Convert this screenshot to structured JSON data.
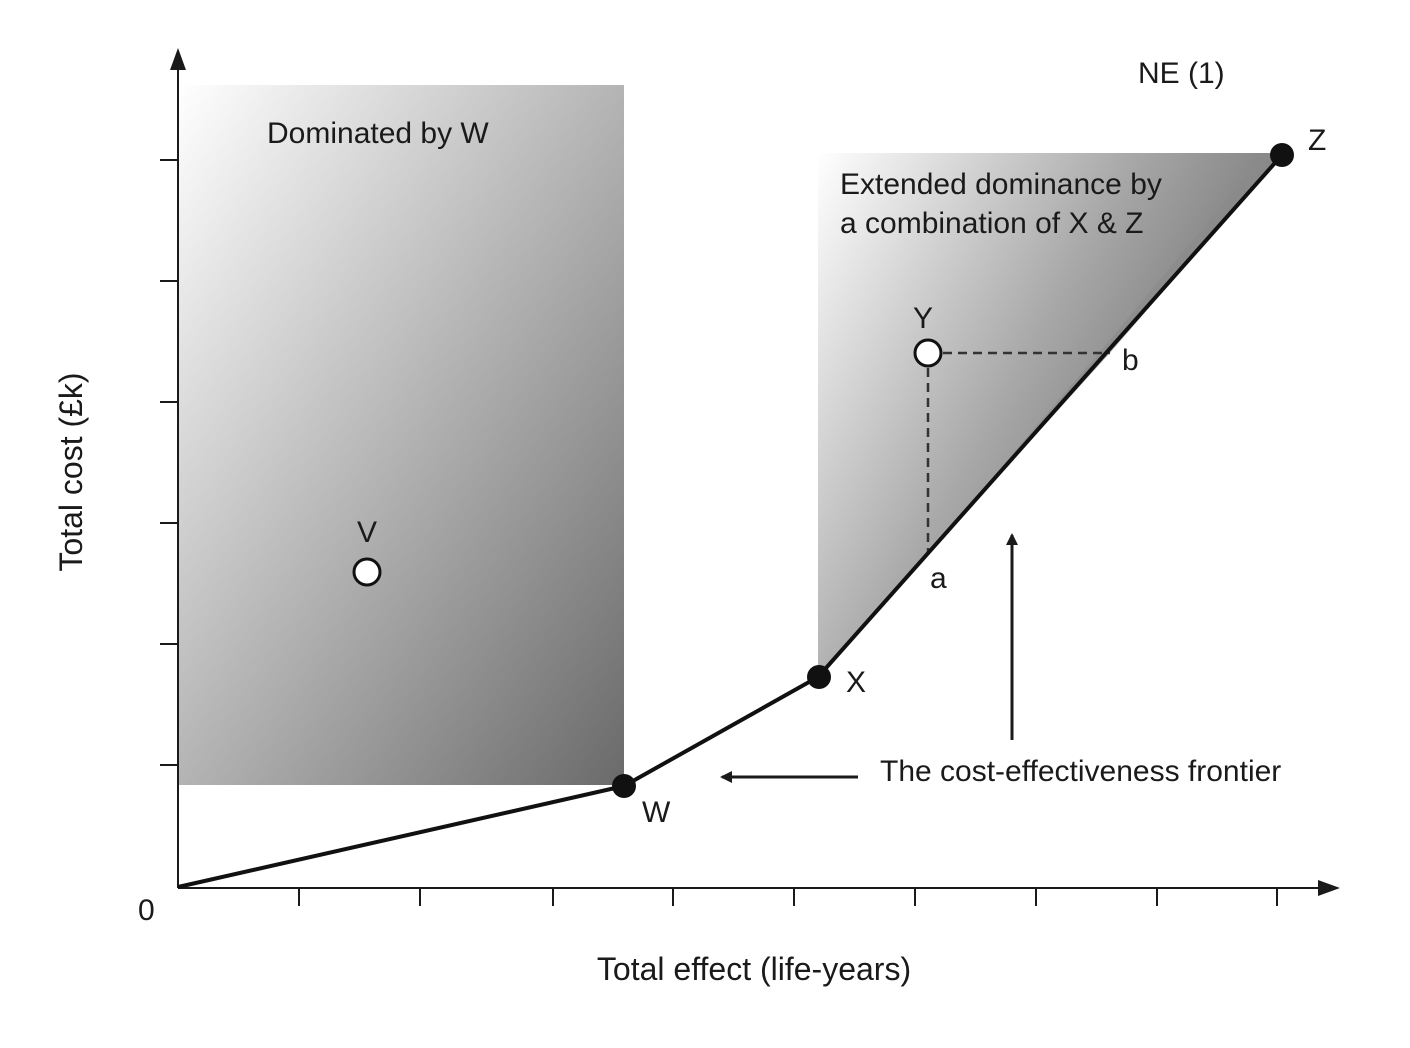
{
  "figure": {
    "y_axis_label": "Total cost (£k)",
    "x_axis_label": "Total effect (life-years)",
    "origin_label": "0",
    "ne_label": "NE (1)",
    "dominated_region_label": "Dominated by W",
    "extended_dominance_label_line1": "Extended dominance by",
    "extended_dominance_label_line2": "a combination of X & Z",
    "frontier_label": "The cost-effectiveness frontier",
    "points": {
      "W": "W",
      "X": "X",
      "Y": "Y",
      "Z": "Z",
      "V": "V",
      "a": "a",
      "b": "b"
    }
  }
}
